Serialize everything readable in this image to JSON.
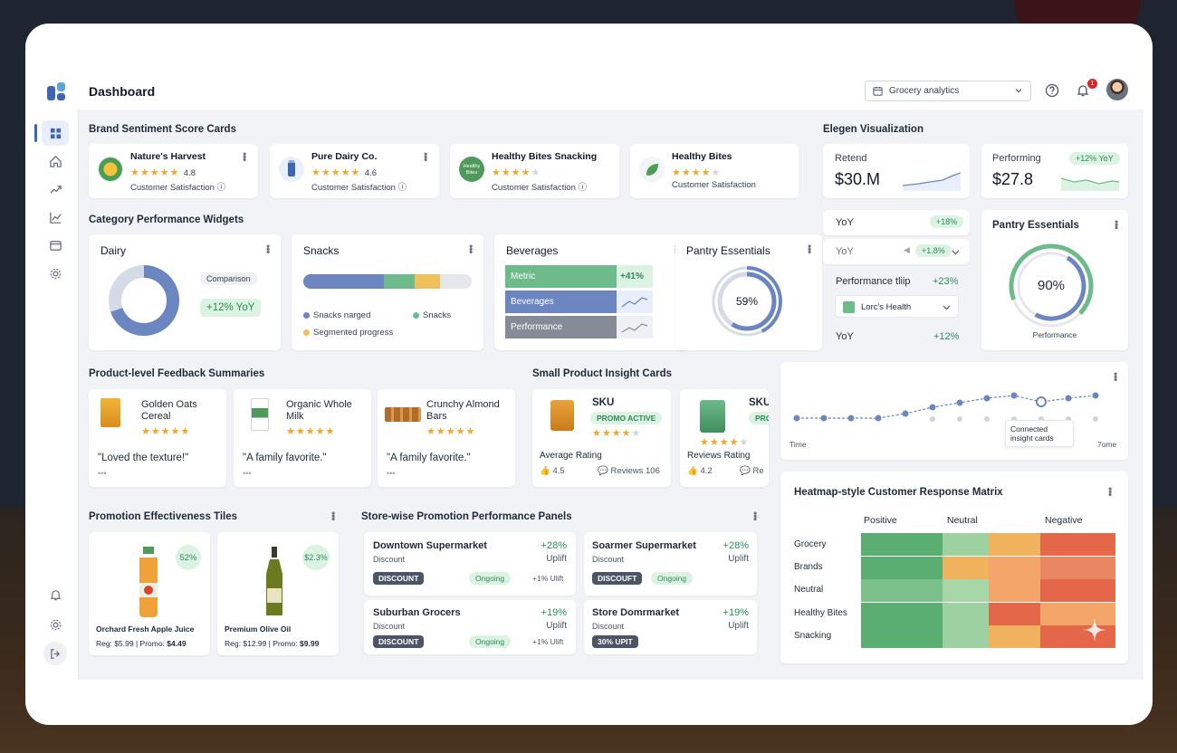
{
  "header": {
    "title": "Dashboard",
    "search_value": "Grocery analytics",
    "notif_count": "1"
  },
  "sections": {
    "brand": "Brand Sentiment Score Cards",
    "category": "Category Performance Widgets",
    "feedback": "Product-level Feedback Summaries",
    "insight": "Small Product Insight Cards",
    "promo": "Promotion Effectiveness Tiles",
    "store": "Store-wise Promotion Performance Panels",
    "elegen": "Elegen Visualization",
    "heatmap": "Heatmap-style Customer Response Matrix"
  },
  "brands": [
    {
      "name": "Nature's Harvest",
      "rating": "4.8",
      "stars": 5,
      "label": "Customer Satisfaction"
    },
    {
      "name": "Pure Dairy Co.",
      "rating": "4.6",
      "stars": 5,
      "label": "Customer Satisfaction"
    },
    {
      "name": "Healthy Bites Snacking",
      "rating": "",
      "stars": 4,
      "label": "Customer Satisfaction",
      "logo_text": "Healthy Bites"
    },
    {
      "name": "Healthy Bites",
      "rating": "",
      "stars": 4,
      "label": "Customer Satisfaction"
    }
  ],
  "dairy": {
    "title": "Dairy",
    "comparison": "Comparison",
    "yoy": "+12% YoY"
  },
  "snacks": {
    "title": "Snacks",
    "legend1": "Snacks narged",
    "legend2": "Snacks",
    "legend3": "Segmented progress",
    "colors": [
      "#6b86c0",
      "#6dbb8a",
      "#f0c05a"
    ]
  },
  "beverages": {
    "title": "Beverages",
    "rows": [
      {
        "label": "Metric",
        "value": "+41%"
      },
      {
        "label": "Beverages",
        "value": ""
      },
      {
        "label": "Performance",
        "value": ""
      }
    ]
  },
  "pantry_small": {
    "title": "Pantry Essentials",
    "value": "59%",
    "progress": 0.59
  },
  "elegen": {
    "retend": {
      "label": "Retend",
      "value": "$30.M"
    },
    "performing": {
      "label": "Performing",
      "value": "$27.8",
      "badge": "+12% YoY"
    },
    "yoy1": {
      "label": "YoY",
      "badge": "+18%"
    },
    "yoy2": {
      "label": "YoY",
      "badge": "+1.8%"
    },
    "perf_tip": {
      "label": "Performance tliip",
      "value": "+23%"
    },
    "select": "Lorc's Health",
    "yoy3": {
      "label": "YoY",
      "value": "+12%"
    }
  },
  "pantry_big": {
    "title": "Pantry Essentials",
    "value": "90%",
    "caption": "Performance",
    "progress": 0.9
  },
  "feedback": [
    {
      "name": "Golden Oats Cereal",
      "quote": "\"Loved the texture!\"",
      "stars": 5
    },
    {
      "name": "Organic Whole Milk",
      "quote": "\"A family favorite.\"",
      "stars": 5
    },
    {
      "name": "Crunchy Almond Bars",
      "quote": "\"A family favorite.\"",
      "stars": 5
    }
  ],
  "insights": [
    {
      "sku": "SKU",
      "badge": "PROMO ACTIVE",
      "label": "Average Rating",
      "rating": "4.5",
      "reviews": "Reviews 106",
      "stars": 4
    },
    {
      "sku": "SKU",
      "badge": "PRO",
      "label": "Reviews Rating",
      "rating": "4.2",
      "reviews": "Re",
      "stars": 4
    }
  ],
  "timeline": {
    "x_start": "Time",
    "x_end": "7ome",
    "tooltip": "Connected insight cards"
  },
  "promo": [
    {
      "name": "Orchard Fresh Apple Juice",
      "reg": "Reg: $5.99 | Promo:",
      "promo": "$4.49",
      "pct": "52%"
    },
    {
      "name": "Premium Olive Oil",
      "reg": "Reg: $12.99 | Promo:",
      "promo": "$9.99",
      "pct": "$2.3%"
    }
  ],
  "stores": [
    {
      "name": "Downtown Supermarket",
      "sub": "Discount",
      "uplift": "+28%",
      "uplift_lbl": "Uplift",
      "tag": "DISCOUNT",
      "status": "Ongoing",
      "note": "+1% Ulift"
    },
    {
      "name": "Soarmer Supermarket",
      "sub": "Discount",
      "uplift": "+28%",
      "uplift_lbl": "Uplift",
      "tag": "DISCOUFT",
      "status": "Ongoing",
      "note": ""
    },
    {
      "name": "Suburban Grocers",
      "sub": "Discount",
      "uplift": "+19%",
      "uplift_lbl": "Uplift",
      "tag": "DISCOUNT",
      "status": "Ongoing",
      "note": "+1% Ulift"
    },
    {
      "name": "Store Domrmarket",
      "sub": "Discount",
      "uplift": "+19%",
      "uplift_lbl": "Uplift",
      "tag": "30% UPIT",
      "status": "",
      "note": ""
    }
  ],
  "heatmap": {
    "columns": [
      "Positive",
      "Neutral",
      "Negative"
    ],
    "rows": [
      "Grocery",
      "Brands",
      "Neutral",
      "Healthy Bites",
      "Snacking"
    ]
  }
}
